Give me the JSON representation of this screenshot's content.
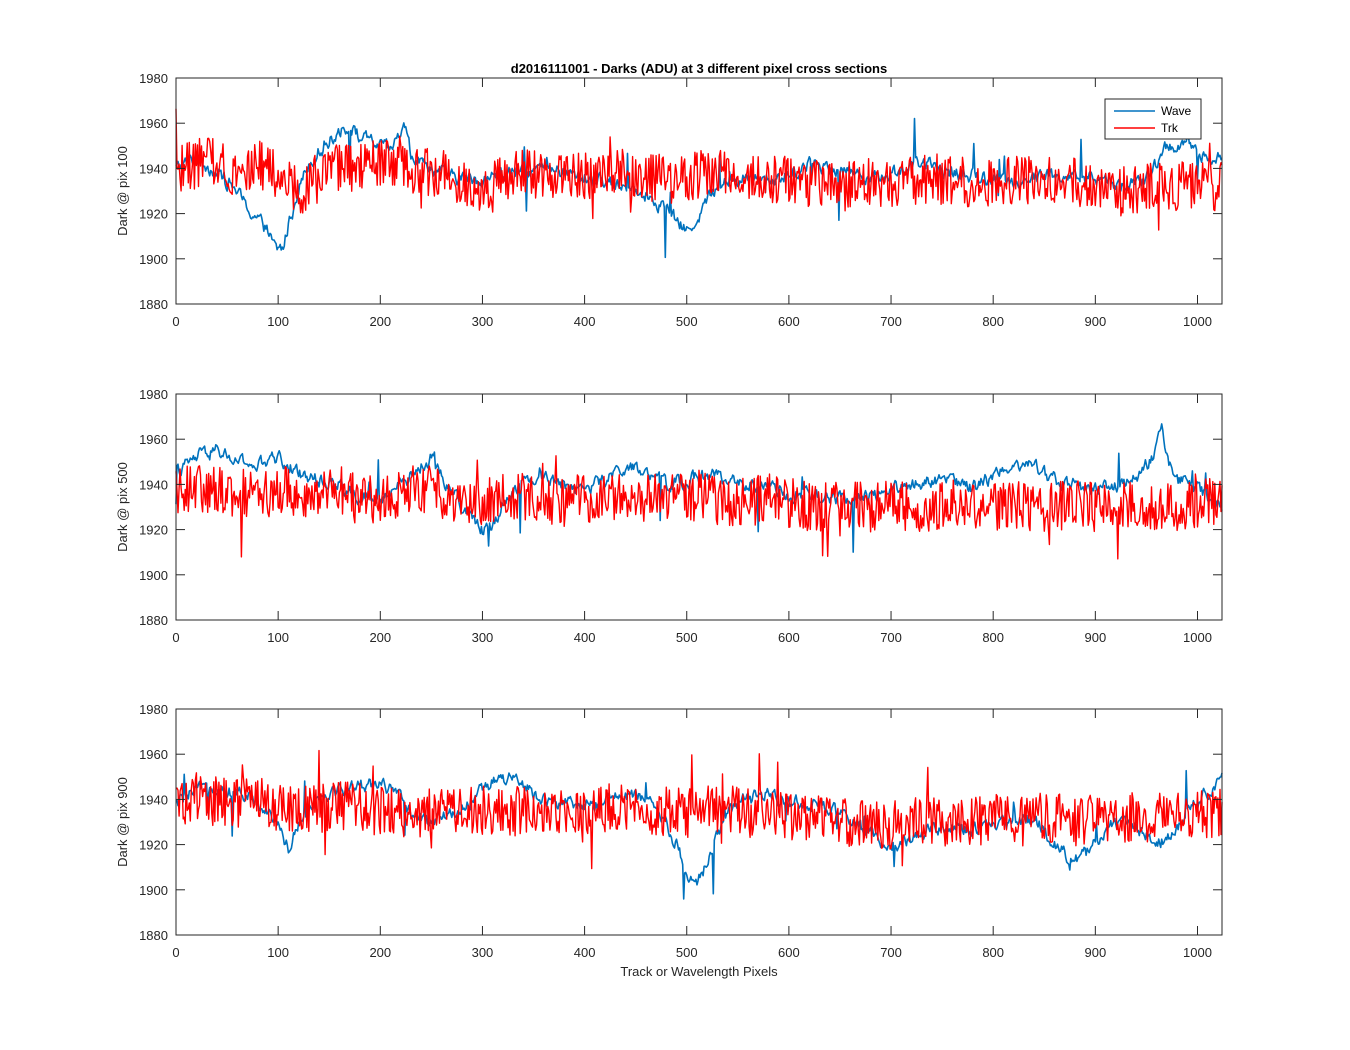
{
  "figure": {
    "title": "d2016111001 - Darks (ADU) at 3 different pixel cross sections",
    "xlabel": "Track or Wavelength Pixels"
  },
  "colors": {
    "wave": "#0072BD",
    "trk": "#FF0000",
    "axis": "#262626"
  },
  "chart_data": [
    {
      "type": "line",
      "ylabel": "Dark @ pix 100",
      "xlim": [
        0,
        1024
      ],
      "ylim": [
        1880,
        1980
      ],
      "xticks": [
        0,
        100,
        200,
        300,
        400,
        500,
        600,
        700,
        800,
        900,
        1000
      ],
      "yticks": [
        1880,
        1900,
        1920,
        1940,
        1960,
        1980
      ],
      "legend": {
        "position": "top-right",
        "entries": [
          "Wave",
          "Trk"
        ]
      },
      "series": [
        {
          "name": "Wave",
          "color": "#0072BD",
          "x": [
            0,
            20,
            40,
            60,
            70,
            80,
            90,
            95,
            100,
            105,
            110,
            120,
            130,
            140,
            150,
            160,
            170,
            180,
            190,
            200,
            210,
            220,
            225,
            230,
            250,
            270,
            300,
            330,
            360,
            390,
            420,
            450,
            480,
            500,
            510,
            530,
            560,
            590,
            620,
            650,
            680,
            700,
            730,
            760,
            790,
            820,
            850,
            880,
            910,
            930,
            950,
            960,
            970,
            980,
            990,
            1000,
            1010,
            1024
          ],
          "values": [
            1940,
            1945,
            1938,
            1930,
            1922,
            1918,
            1912,
            1906,
            1904,
            1905,
            1915,
            1932,
            1942,
            1948,
            1952,
            1957,
            1958,
            1954,
            1952,
            1950,
            1948,
            1956,
            1958,
            1946,
            1940,
            1936,
            1935,
            1938,
            1940,
            1937,
            1934,
            1932,
            1922,
            1912,
            1918,
            1933,
            1936,
            1935,
            1942,
            1940,
            1936,
            1938,
            1942,
            1938,
            1936,
            1934,
            1937,
            1936,
            1935,
            1932,
            1935,
            1942,
            1950,
            1950,
            1952,
            1945,
            1946,
            1944
          ]
        },
        {
          "name": "Trk",
          "color": "#FF0000",
          "x": [
            0,
            20,
            40,
            60,
            80,
            100,
            120,
            140,
            160,
            180,
            200,
            220,
            240,
            260,
            280,
            300,
            320,
            340,
            360,
            380,
            400,
            420,
            440,
            460,
            480,
            500,
            520,
            540,
            560,
            580,
            600,
            620,
            640,
            660,
            680,
            700,
            720,
            740,
            760,
            780,
            800,
            820,
            840,
            860,
            880,
            900,
            920,
            940,
            960,
            980,
            1000,
            1024
          ],
          "values": [
            1940,
            1942,
            1944,
            1938,
            1942,
            1936,
            1930,
            1936,
            1940,
            1940,
            1942,
            1940,
            1938,
            1938,
            1935,
            1932,
            1935,
            1938,
            1936,
            1938,
            1938,
            1936,
            1938,
            1936,
            1935,
            1936,
            1938,
            1938,
            1935,
            1936,
            1935,
            1934,
            1932,
            1932,
            1934,
            1932,
            1934,
            1936,
            1934,
            1934,
            1934,
            1935,
            1934,
            1934,
            1934,
            1932,
            1930,
            1930,
            1934,
            1932,
            1932,
            1932
          ]
        }
      ]
    },
    {
      "type": "line",
      "ylabel": "Dark @ pix 500",
      "xlim": [
        0,
        1024
      ],
      "ylim": [
        1880,
        1980
      ],
      "xticks": [
        0,
        100,
        200,
        300,
        400,
        500,
        600,
        700,
        800,
        900,
        1000
      ],
      "yticks": [
        1880,
        1900,
        1920,
        1940,
        1960,
        1980
      ],
      "series": [
        {
          "name": "Wave",
          "color": "#0072BD",
          "x": [
            0,
            20,
            40,
            60,
            80,
            100,
            120,
            140,
            160,
            180,
            200,
            220,
            240,
            250,
            260,
            280,
            300,
            310,
            320,
            340,
            360,
            380,
            400,
            420,
            440,
            460,
            480,
            500,
            520,
            540,
            560,
            580,
            600,
            620,
            640,
            660,
            680,
            700,
            720,
            740,
            760,
            780,
            800,
            820,
            840,
            860,
            880,
            900,
            920,
            940,
            960,
            965,
            970,
            980,
            1000,
            1024
          ],
          "values": [
            1945,
            1952,
            1955,
            1950,
            1948,
            1952,
            1945,
            1942,
            1940,
            1935,
            1932,
            1940,
            1948,
            1952,
            1944,
            1930,
            1920,
            1922,
            1932,
            1942,
            1944,
            1940,
            1938,
            1942,
            1948,
            1944,
            1940,
            1942,
            1944,
            1942,
            1940,
            1938,
            1936,
            1935,
            1934,
            1932,
            1935,
            1938,
            1940,
            1942,
            1942,
            1938,
            1944,
            1950,
            1948,
            1942,
            1940,
            1938,
            1940,
            1942,
            1955,
            1965,
            1952,
            1942,
            1938,
            1930
          ]
        },
        {
          "name": "Trk",
          "color": "#FF0000",
          "x": [
            0,
            20,
            40,
            60,
            80,
            100,
            120,
            140,
            160,
            180,
            200,
            220,
            240,
            260,
            280,
            300,
            320,
            340,
            360,
            380,
            400,
            420,
            440,
            460,
            480,
            500,
            520,
            540,
            560,
            580,
            600,
            620,
            640,
            660,
            680,
            700,
            720,
            740,
            760,
            780,
            800,
            820,
            840,
            860,
            880,
            900,
            920,
            940,
            960,
            980,
            1000,
            1024
          ],
          "values": [
            1940,
            1938,
            1938,
            1936,
            1935,
            1938,
            1935,
            1935,
            1938,
            1932,
            1934,
            1936,
            1938,
            1936,
            1934,
            1932,
            1935,
            1935,
            1934,
            1932,
            1934,
            1935,
            1935,
            1934,
            1935,
            1935,
            1934,
            1932,
            1932,
            1934,
            1932,
            1930,
            1930,
            1932,
            1930,
            1932,
            1930,
            1930,
            1932,
            1930,
            1930,
            1932,
            1928,
            1930,
            1932,
            1930,
            1930,
            1930,
            1930,
            1930,
            1932,
            1932
          ]
        }
      ]
    },
    {
      "type": "line",
      "ylabel": "Dark @ pix 900",
      "xlim": [
        0,
        1024
      ],
      "ylim": [
        1880,
        1980
      ],
      "xticks": [
        0,
        100,
        200,
        300,
        400,
        500,
        600,
        700,
        800,
        900,
        1000
      ],
      "yticks": [
        1880,
        1900,
        1920,
        1940,
        1960,
        1980
      ],
      "series": [
        {
          "name": "Wave",
          "color": "#0072BD",
          "x": [
            0,
            20,
            40,
            60,
            80,
            100,
            110,
            120,
            140,
            160,
            180,
            200,
            220,
            240,
            260,
            280,
            300,
            320,
            340,
            360,
            380,
            400,
            420,
            440,
            460,
            480,
            490,
            500,
            510,
            520,
            530,
            540,
            560,
            580,
            600,
            620,
            640,
            660,
            680,
            700,
            720,
            740,
            760,
            780,
            800,
            820,
            840,
            860,
            880,
            900,
            920,
            940,
            960,
            980,
            1000,
            1024
          ],
          "values": [
            1938,
            1944,
            1946,
            1942,
            1940,
            1930,
            1918,
            1930,
            1942,
            1944,
            1946,
            1948,
            1940,
            1930,
            1932,
            1936,
            1944,
            1950,
            1946,
            1940,
            1938,
            1936,
            1940,
            1942,
            1940,
            1930,
            1920,
            1906,
            1904,
            1912,
            1925,
            1935,
            1940,
            1942,
            1940,
            1938,
            1936,
            1930,
            1925,
            1920,
            1922,
            1928,
            1928,
            1926,
            1928,
            1930,
            1932,
            1920,
            1912,
            1920,
            1930,
            1928,
            1920,
            1928,
            1940,
            1948
          ]
        },
        {
          "name": "Trk",
          "color": "#FF0000",
          "x": [
            0,
            20,
            40,
            60,
            80,
            100,
            120,
            140,
            160,
            180,
            200,
            220,
            240,
            260,
            280,
            300,
            320,
            340,
            360,
            380,
            400,
            420,
            440,
            460,
            480,
            500,
            520,
            540,
            560,
            580,
            600,
            620,
            640,
            660,
            680,
            700,
            720,
            740,
            760,
            780,
            800,
            820,
            840,
            860,
            880,
            900,
            920,
            940,
            960,
            980,
            1000,
            1024
          ],
          "values": [
            1938,
            1942,
            1940,
            1938,
            1940,
            1936,
            1935,
            1936,
            1938,
            1936,
            1935,
            1934,
            1934,
            1934,
            1935,
            1935,
            1934,
            1935,
            1936,
            1934,
            1935,
            1936,
            1936,
            1935,
            1935,
            1934,
            1935,
            1936,
            1934,
            1934,
            1932,
            1932,
            1930,
            1930,
            1928,
            1928,
            1930,
            1930,
            1930,
            1930,
            1932,
            1930,
            1930,
            1932,
            1930,
            1932,
            1932,
            1932,
            1932,
            1934,
            1934,
            1934
          ]
        }
      ]
    }
  ]
}
